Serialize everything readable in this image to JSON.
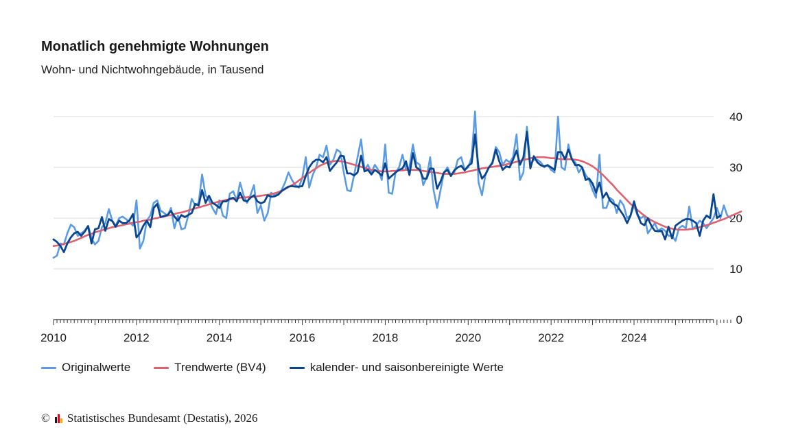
{
  "chart_data": {
    "type": "line",
    "title": "Monatlich genehmigte Wohnungen",
    "subtitle": "Wohn- und Nichtwohngebäude, in Tausend",
    "xlabel": "",
    "ylabel": "",
    "xlim": [
      2010,
      2025.92
    ],
    "ylim": [
      0,
      40
    ],
    "x_ticks": [
      "2010",
      "2012",
      "2014",
      "2016",
      "2018",
      "2020",
      "2022",
      "2024"
    ],
    "y_ticks": [
      "0",
      "10",
      "20",
      "30",
      "40"
    ],
    "grid": "horizontal",
    "legend_position": "bottom",
    "x_start": "2010-01",
    "x_step": "month",
    "series": [
      {
        "name": "Originalwerte",
        "color": "#5b9be3",
        "values": [
          12.2,
          12.6,
          15.0,
          14.8,
          17.0,
          18.7,
          18.2,
          16.5,
          17.0,
          17.5,
          18.5,
          16.0,
          14.8,
          15.5,
          18.2,
          19.0,
          21.8,
          19.5,
          18.5,
          20.0,
          20.3,
          19.8,
          19.2,
          18.5,
          23.5,
          14.0,
          15.5,
          19.5,
          20.5,
          23.0,
          23.5,
          21.5,
          21.0,
          20.5,
          22.0,
          18.0,
          20.5,
          17.8,
          18.0,
          20.5,
          23.8,
          22.5,
          23.0,
          28.6,
          24.5,
          23.5,
          22.0,
          20.8,
          23.5,
          20.5,
          20.0,
          24.8,
          25.3,
          23.5,
          27.0,
          24.5,
          23.0,
          24.5,
          26.5,
          21.0,
          22.5,
          19.5,
          21.0,
          25.0,
          24.5,
          24.8,
          25.5,
          27.0,
          29.0,
          27.5,
          26.5,
          26.0,
          28.0,
          32.0,
          26.0,
          28.5,
          30.0,
          32.5,
          32.0,
          34.3,
          30.5,
          31.5,
          33.5,
          33.0,
          29.0,
          25.5,
          25.3,
          28.5,
          32.0,
          35.5,
          29.5,
          30.5,
          29.0,
          30.5,
          29.5,
          27.5,
          34.5,
          25.0,
          24.8,
          29.0,
          30.0,
          32.5,
          29.5,
          30.0,
          34.5,
          31.0,
          30.5,
          26.5,
          28.0,
          32.0,
          25.5,
          22.0,
          25.5,
          29.0,
          30.0,
          28.5,
          29.0,
          31.5,
          32.0,
          29.5,
          30.0,
          32.0,
          41.0,
          27.0,
          24.5,
          28.5,
          30.0,
          31.0,
          34.0,
          33.0,
          30.5,
          31.5,
          31.0,
          32.0,
          36.5,
          27.5,
          29.0,
          38.0,
          30.5,
          31.5,
          31.5,
          31.0,
          30.0,
          30.5,
          29.5,
          29.0,
          40.0,
          30.0,
          29.5,
          34.5,
          31.5,
          31.0,
          29.0,
          30.0,
          28.5,
          27.5,
          25.5,
          24.0,
          32.5,
          22.0,
          22.0,
          24.0,
          23.5,
          21.0,
          23.5,
          22.5,
          20.0,
          20.5,
          22.5,
          20.5,
          20.0,
          20.5,
          17.0,
          18.0,
          19.0,
          17.5,
          18.0,
          17.5,
          16.5,
          16.5,
          15.5,
          18.0,
          18.5,
          18.0,
          22.3,
          17.8,
          18.5,
          19.5,
          19.0,
          18.0,
          19.0,
          20.0,
          22.0,
          20.0,
          22.5,
          20.5,
          20.0
        ]
      },
      {
        "name": "Trendwerte (BV4)",
        "color": "#e0616d",
        "values": [
          14.5,
          14.6,
          14.7,
          14.9,
          15.1,
          15.3,
          15.5,
          15.8,
          16.1,
          16.4,
          16.7,
          16.9,
          17.2,
          17.4,
          17.6,
          17.8,
          18.0,
          18.2,
          18.3,
          18.5,
          18.6,
          18.8,
          18.9,
          19.1,
          19.2,
          19.3,
          19.5,
          19.6,
          19.7,
          19.9,
          20.0,
          20.2,
          20.3,
          20.5,
          20.6,
          20.8,
          21.0,
          21.1,
          21.3,
          21.5,
          21.7,
          21.9,
          22.1,
          22.3,
          22.5,
          22.7,
          22.9,
          23.1,
          23.3,
          23.4,
          23.6,
          23.7,
          23.8,
          23.9,
          24.0,
          24.1,
          24.1,
          24.2,
          24.2,
          24.3,
          24.4,
          24.5,
          24.6,
          24.7,
          24.9,
          25.1,
          25.4,
          25.7,
          26.1,
          26.5,
          26.9,
          27.4,
          27.9,
          28.4,
          28.9,
          29.4,
          29.8,
          30.3,
          30.6,
          30.9,
          31.1,
          31.2,
          31.3,
          31.2,
          31.1,
          30.9,
          30.7,
          30.5,
          30.3,
          30.1,
          29.9,
          29.7,
          29.5,
          29.4,
          29.3,
          29.2,
          29.2,
          29.2,
          29.3,
          29.3,
          29.4,
          29.4,
          29.5,
          29.5,
          29.5,
          29.5,
          29.4,
          29.3,
          29.2,
          29.1,
          29.0,
          28.9,
          28.8,
          28.7,
          28.7,
          28.7,
          28.7,
          28.8,
          28.9,
          29.0,
          29.2,
          29.3,
          29.5,
          29.6,
          29.8,
          29.9,
          30.0,
          30.1,
          30.2,
          30.3,
          30.4,
          30.6,
          30.7,
          30.9,
          31.1,
          31.3,
          31.5,
          31.6,
          31.8,
          31.9,
          32.0,
          32.0,
          32.0,
          31.9,
          31.8,
          31.8,
          31.7,
          31.6,
          31.6,
          31.6,
          31.6,
          31.5,
          31.4,
          31.2,
          30.9,
          30.6,
          30.2,
          29.7,
          29.1,
          28.5,
          27.8,
          27.1,
          26.4,
          25.6,
          24.9,
          24.2,
          23.5,
          22.8,
          22.2,
          21.6,
          21.0,
          20.5,
          20.0,
          19.6,
          19.2,
          18.9,
          18.6,
          18.3,
          18.1,
          17.9,
          17.8,
          17.7,
          17.7,
          17.7,
          17.8,
          17.9,
          18.0,
          18.2,
          18.4,
          18.6,
          18.8,
          19.1,
          19.3,
          19.6,
          19.8,
          20.1,
          20.4,
          20.7,
          21.0,
          21.3
        ]
      },
      {
        "name": "kalender- und saisonbereinigte Werte",
        "color": "#0a4690",
        "values": [
          15.8,
          15.3,
          14.5,
          13.3,
          15.0,
          16.2,
          17.0,
          17.3,
          16.5,
          17.3,
          18.4,
          15.0,
          17.8,
          18.0,
          20.2,
          17.5,
          19.8,
          19.4,
          18.3,
          19.5,
          19.0,
          19.0,
          19.6,
          20.8,
          16.2,
          17.0,
          18.5,
          19.5,
          18.2,
          22.0,
          22.8,
          20.2,
          20.4,
          20.6,
          21.4,
          20.3,
          19.5,
          20.6,
          20.2,
          20.6,
          21.0,
          22.8,
          22.5,
          25.5,
          23.0,
          24.4,
          23.0,
          22.6,
          22.0,
          23.3,
          23.3,
          23.8,
          24.0,
          23.3,
          25.0,
          23.5,
          23.3,
          24.0,
          24.5,
          23.3,
          22.9,
          23.2,
          24.5,
          24.2,
          24.3,
          24.6,
          25.3,
          25.8,
          26.2,
          26.3,
          26.2,
          26.2,
          26.3,
          28.3,
          30.0,
          31.0,
          31.5,
          31.5,
          31.0,
          32.0,
          29.3,
          30.2,
          31.0,
          32.3,
          32.2,
          28.8,
          28.8,
          28.4,
          29.0,
          32.3,
          29.2,
          29.5,
          28.6,
          29.5,
          29.0,
          28.4,
          30.8,
          27.8,
          28.4,
          29.0,
          29.5,
          29.8,
          31.2,
          28.5,
          32.8,
          30.0,
          29.5,
          27.8,
          27.8,
          29.8,
          29.7,
          25.8,
          27.2,
          29.0,
          29.5,
          28.3,
          29.4,
          30.0,
          30.3,
          29.4,
          30.3,
          30.8,
          36.5,
          29.8,
          27.8,
          28.6,
          30.0,
          30.8,
          33.5,
          31.2,
          29.5,
          30.2,
          30.0,
          31.5,
          33.3,
          30.5,
          32.0,
          37.0,
          29.8,
          32.2,
          31.0,
          30.4,
          30.2,
          30.4,
          30.0,
          29.5,
          33.0,
          33.0,
          31.6,
          33.5,
          31.7,
          30.4,
          30.5,
          30.0,
          27.5,
          27.8,
          26.8,
          25.0,
          27.0,
          24.0,
          25.0,
          23.5,
          22.8,
          22.5,
          21.5,
          20.5,
          19.0,
          20.5,
          23.3,
          20.8,
          19.0,
          18.6,
          20.0,
          18.5,
          17.5,
          17.4,
          17.5,
          15.8,
          18.3,
          16.0,
          18.5,
          19.0,
          19.5,
          19.8,
          19.8,
          19.5,
          19.0,
          16.5,
          19.5,
          20.5,
          20.0,
          24.7,
          20.0,
          20.5
        ]
      }
    ]
  },
  "legend": {
    "items": [
      "Originalwerte",
      "Trendwerte (BV4)",
      "kalender- und saisonbereinigte Werte"
    ]
  },
  "footer": {
    "copyright_symbol": "©",
    "source": "Statistisches Bundesamt (Destatis), 2026",
    "logo_colors": [
      "#1a1a1a",
      "#e3001b",
      "#f2b400"
    ]
  }
}
